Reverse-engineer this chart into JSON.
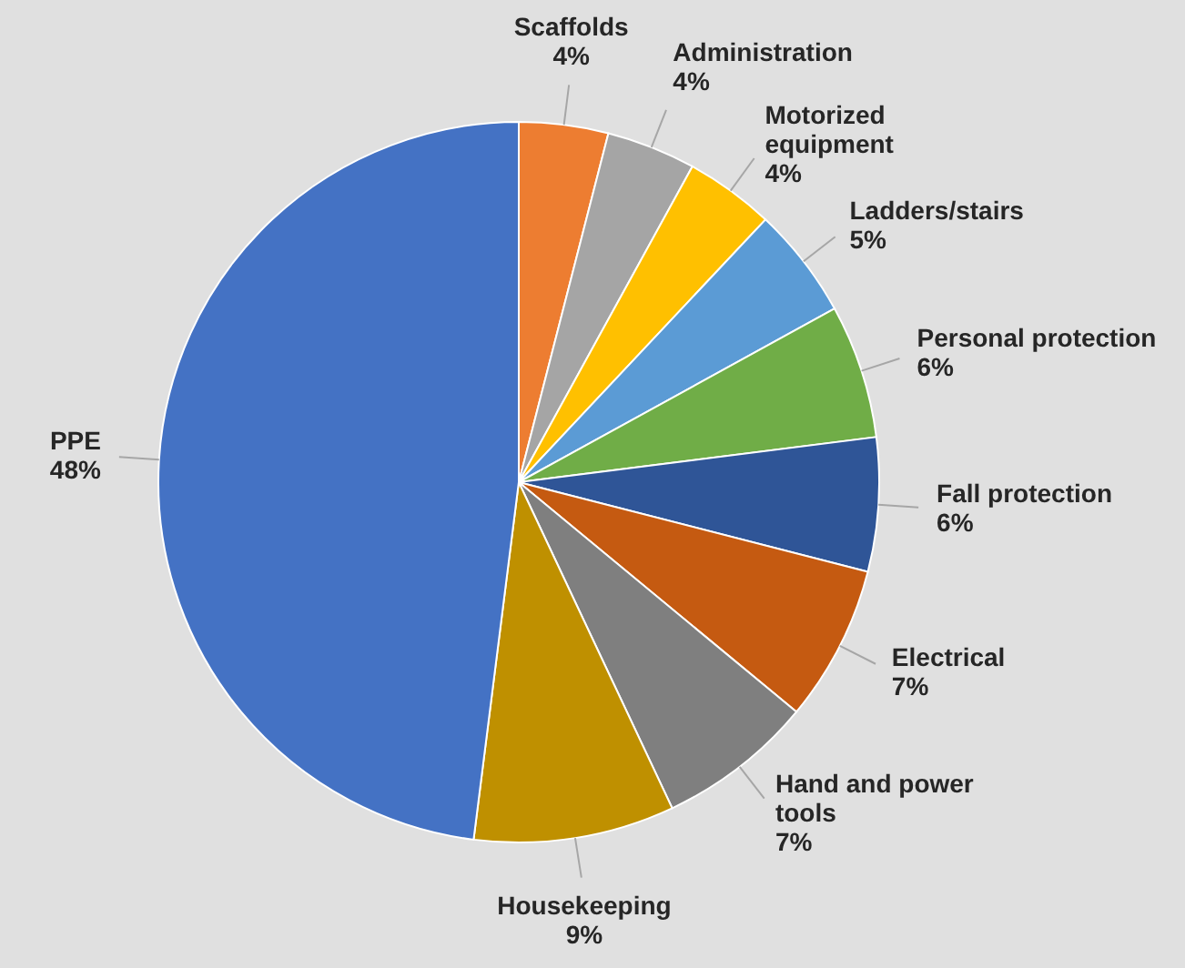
{
  "chart_data": {
    "type": "pie",
    "categories": [
      "Scaffolds",
      "Administration",
      "Motorized equipment",
      "Ladders/stairs",
      "Personal protection",
      "Fall protection",
      "Electrical",
      "Hand and power tools",
      "Housekeeping",
      "PPE"
    ],
    "values": [
      4,
      4,
      4,
      5,
      6,
      6,
      7,
      7,
      9,
      48
    ],
    "value_labels": [
      "4%",
      "4%",
      "4%",
      "5%",
      "6%",
      "6%",
      "7%",
      "7%",
      "9%",
      "48%"
    ],
    "colors": [
      "#ed7d31",
      "#a5a5a5",
      "#ffc000",
      "#5b9bd5",
      "#70ad47",
      "#2f5597",
      "#c55a11",
      "#7f7f7f",
      "#bf9000",
      "#4472c4"
    ]
  }
}
